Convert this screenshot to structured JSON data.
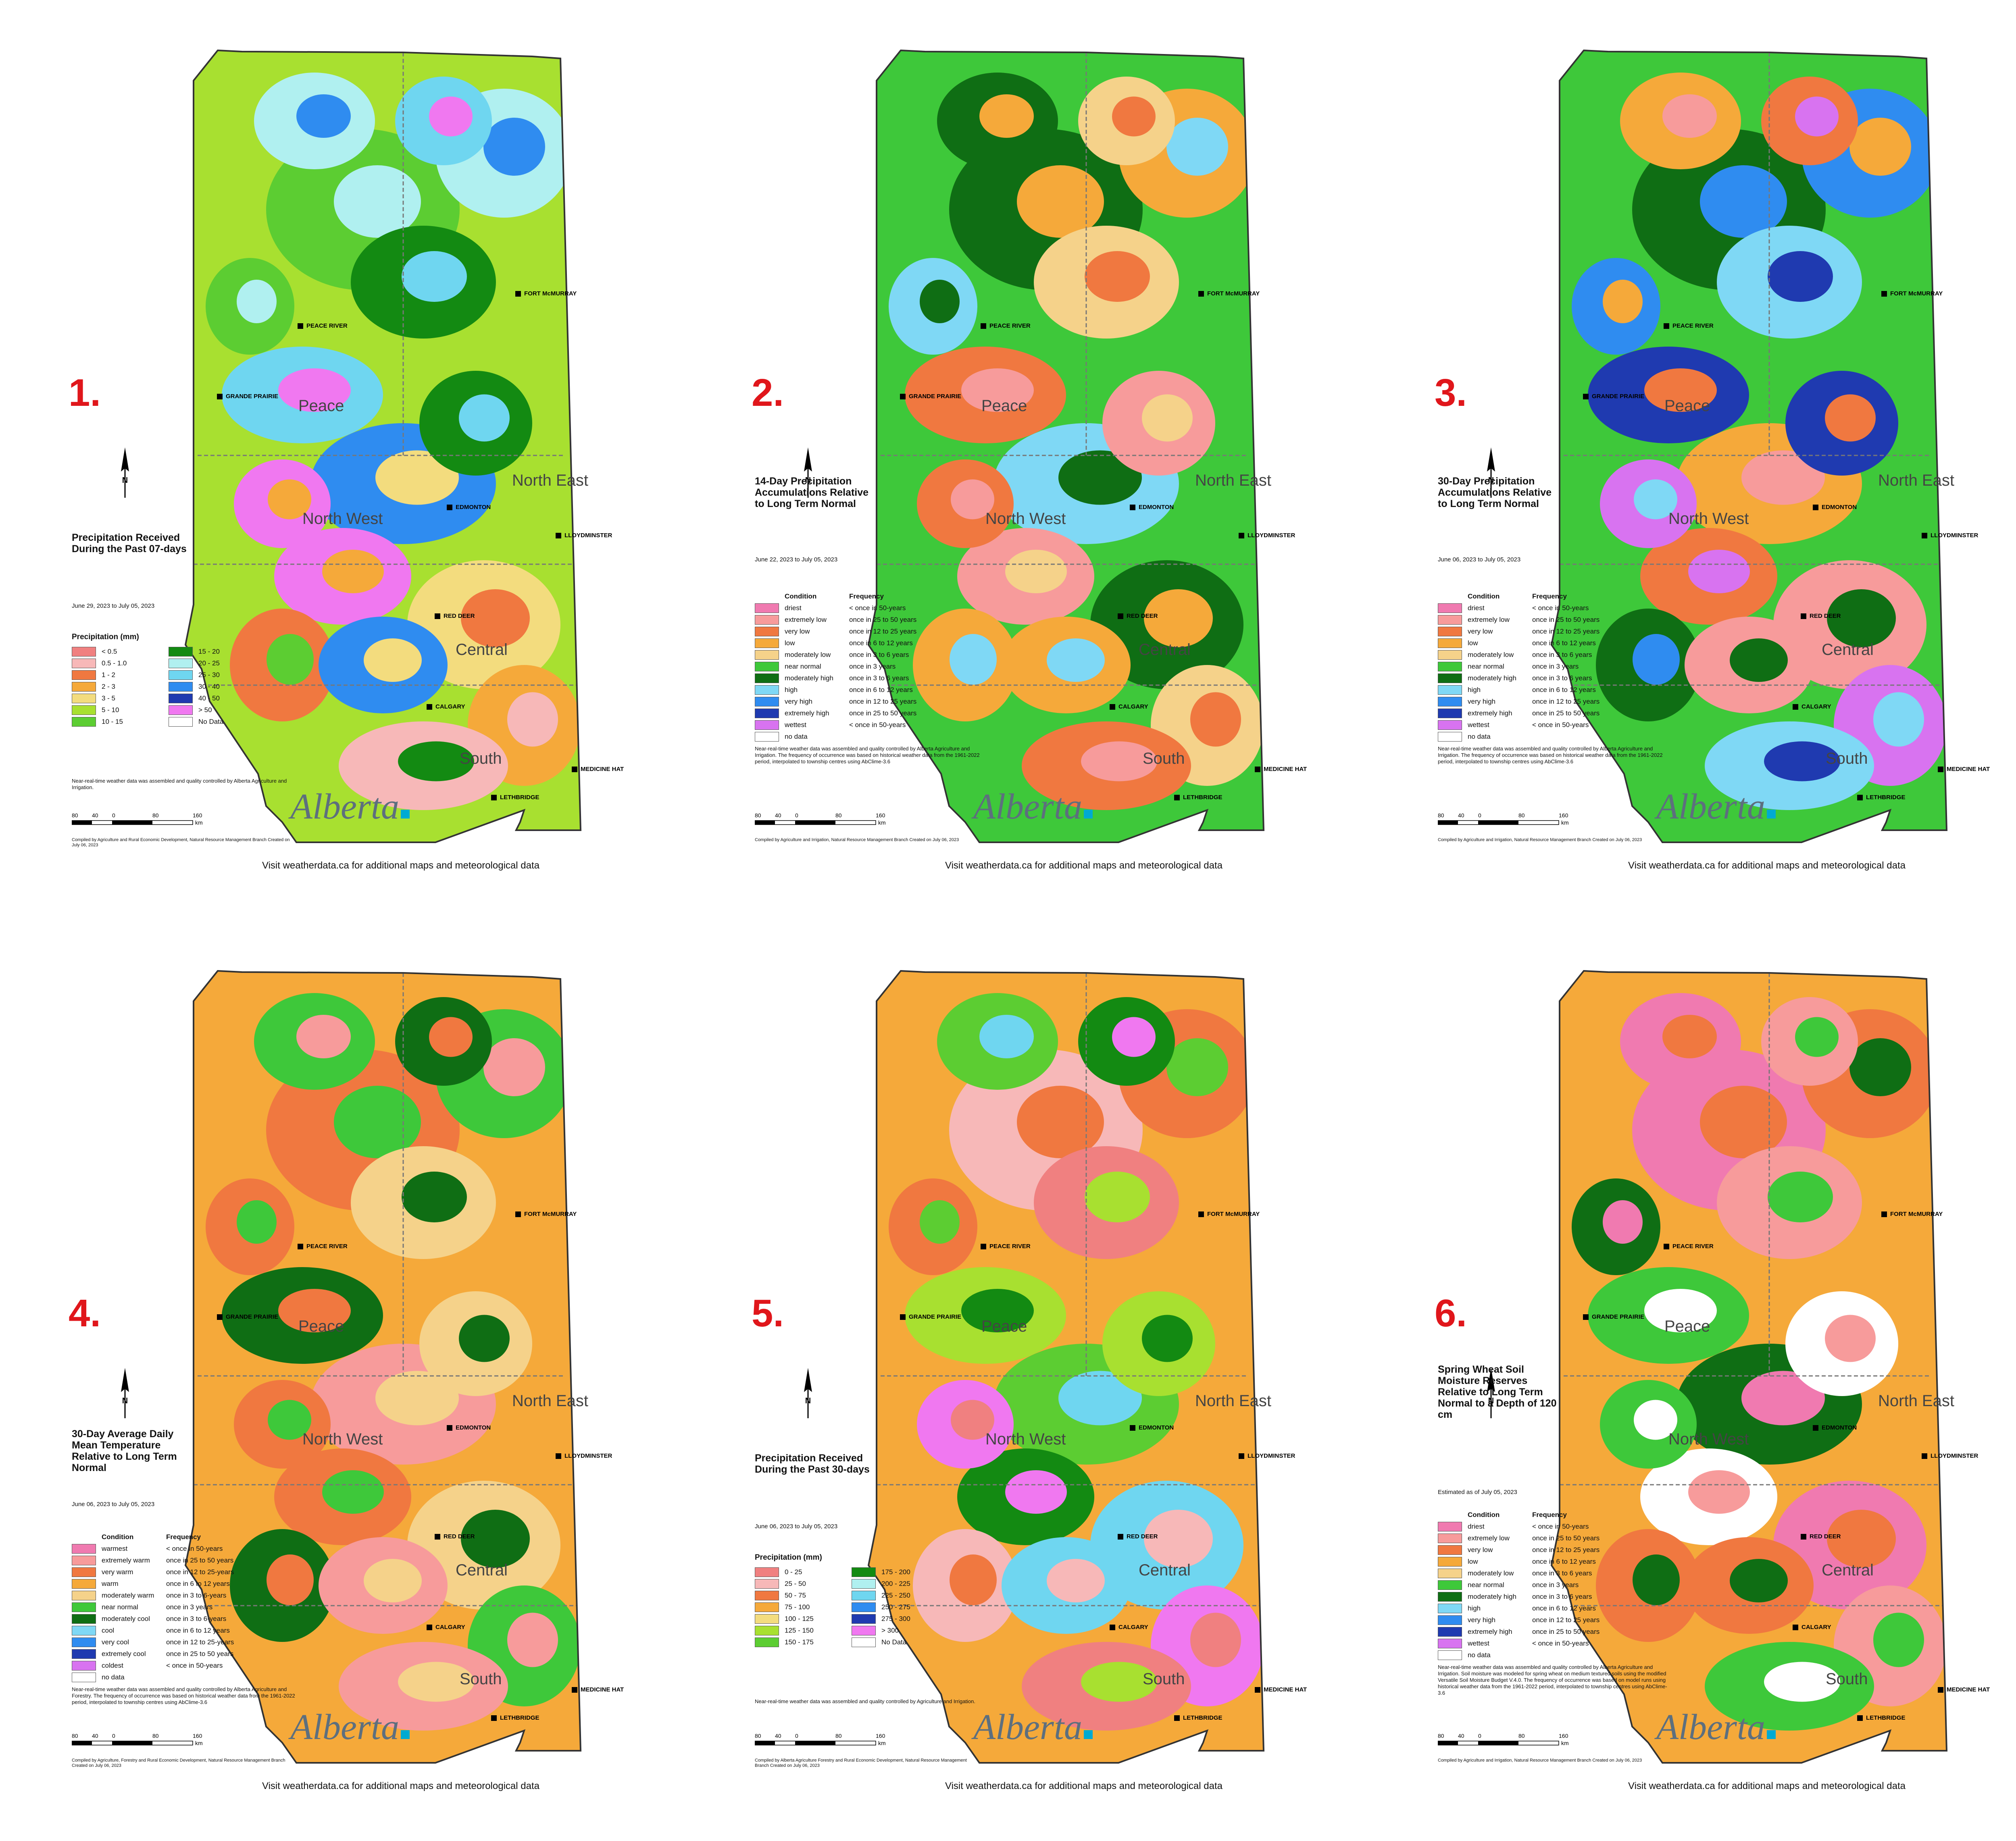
{
  "page": {
    "visit_text": "Visit weatherdata.ca for additional maps and meteorological data",
    "logo_text": "Alberta"
  },
  "common": {
    "regions": [
      "Peace",
      "North West",
      "North East",
      "Central",
      "South"
    ],
    "cities": [
      "FORT McMURRAY",
      "PEACE RIVER",
      "GRANDE PRAIRIE",
      "EDMONTON",
      "LLOYDMINSTER",
      "RED DEER",
      "CALGARY",
      "MEDICINE HAT",
      "LETHBRIDGE"
    ],
    "scale_labels": [
      "80",
      "40",
      "0",
      "80",
      "160"
    ],
    "scale_unit": "km"
  },
  "panels": [
    {
      "number": "1.",
      "title": "Precipitation Received During the Past 07-days",
      "dates": "June 29, 2023 to July 05, 2023",
      "legend_title": "Precipitation (mm)",
      "legend_left": [
        {
          "label": "< 0.5",
          "color": "#f08080"
        },
        {
          "label": "0.5 - 1.0",
          "color": "#f7b8b8"
        },
        {
          "label": "1 - 2",
          "color": "#f07840"
        },
        {
          "label": "2 - 3",
          "color": "#f5a93a"
        },
        {
          "label": "3 - 5",
          "color": "#f3dc7e"
        },
        {
          "label": "5 - 10",
          "color": "#a8e030"
        },
        {
          "label": "10 - 15",
          "color": "#5ccd32"
        }
      ],
      "legend_right": [
        {
          "label": "15 - 20",
          "color": "#138a12"
        },
        {
          "label": "20 - 25",
          "color": "#b0f0f0"
        },
        {
          "label": "25 - 30",
          "color": "#6fd6f0"
        },
        {
          "label": "30 - 40",
          "color": "#2f8cf0"
        },
        {
          "label": "40 - 50",
          "color": "#1f3ab0"
        },
        {
          "label": "> 50",
          "color": "#f078f0"
        },
        {
          "label": "No Data",
          "color": "#ffffff"
        }
      ],
      "note": "Near-real-time weather data was assembled and quality controlled by Alberta Agriculture and Irrigation.",
      "credit": "Compiled by Agriculture and Rural Economic Development, Natural Resource Management Branch Created on July 06, 2023"
    },
    {
      "number": "2.",
      "title": "14-Day Precipitation Accumulations Relative to Long Term Normal",
      "dates": "June 22, 2023 to July 05, 2023",
      "legend_head_condition": "Condition",
      "legend_head_frequency": "Frequency",
      "legend": [
        {
          "condition": "driest",
          "frequency": "< once in 50-years",
          "color": "#f07ab0"
        },
        {
          "condition": "extremely low",
          "frequency": "once in 25 to 50 years",
          "color": "#f79b9b"
        },
        {
          "condition": "very low",
          "frequency": "once in 12 to 25 years",
          "color": "#f07840"
        },
        {
          "condition": "low",
          "frequency": "once in 6 to 12 years",
          "color": "#f5a93a"
        },
        {
          "condition": "moderately low",
          "frequency": "once in 3 to 6 years",
          "color": "#f5d28a"
        },
        {
          "condition": "near normal",
          "frequency": "once in 3 years",
          "color": "#3ec83a"
        },
        {
          "condition": "moderately high",
          "frequency": "once in 3 to 6 years",
          "color": "#0f6e14"
        },
        {
          "condition": "high",
          "frequency": "once in 6 to 12 years",
          "color": "#7fd8f5"
        },
        {
          "condition": "very high",
          "frequency": "once in 12 to 25 years",
          "color": "#2f8cf0"
        },
        {
          "condition": "extremely high",
          "frequency": "once in 25 to 50 years",
          "color": "#1f3ab0"
        },
        {
          "condition": "wettest",
          "frequency": "< once in 50-years",
          "color": "#d873f0"
        },
        {
          "condition": "no data",
          "frequency": "",
          "color": "#ffffff"
        }
      ],
      "note": "Near-real-time weather data was assembled and quality controlled by Alberta Agriculture and Irrigation. The frequency of occurrence was based on historical weather data from the 1961-2022 period, interpolated to township centres using AbClime-3.6",
      "credit": "Compiled by Agriculture and Irrigation, Natural Resource Management Branch Created on July 06, 2023"
    },
    {
      "number": "3.",
      "title": "30-Day Precipitation Accumulations Relative to Long Term Normal",
      "dates": "June 06, 2023 to July 05, 2023",
      "legend_head_condition": "Condition",
      "legend_head_frequency": "Frequency",
      "legend": [
        {
          "condition": "driest",
          "frequency": "< once in 50-years",
          "color": "#f07ab0"
        },
        {
          "condition": "extremely low",
          "frequency": "once in 25 to 50 years",
          "color": "#f79b9b"
        },
        {
          "condition": "very low",
          "frequency": "once in 12 to 25 years",
          "color": "#f07840"
        },
        {
          "condition": "low",
          "frequency": "once in 6 to 12 years",
          "color": "#f5a93a"
        },
        {
          "condition": "moderately low",
          "frequency": "once in 3 to 6 years",
          "color": "#f5d28a"
        },
        {
          "condition": "near normal",
          "frequency": "once in 3 years",
          "color": "#3ec83a"
        },
        {
          "condition": "moderately high",
          "frequency": "once in 3 to 6 years",
          "color": "#0f6e14"
        },
        {
          "condition": "high",
          "frequency": "once in 6 to 12 years",
          "color": "#7fd8f5"
        },
        {
          "condition": "very high",
          "frequency": "once in 12 to 25 years",
          "color": "#2f8cf0"
        },
        {
          "condition": "extremely high",
          "frequency": "once in 25 to 50 years",
          "color": "#1f3ab0"
        },
        {
          "condition": "wettest",
          "frequency": "< once in 50-years",
          "color": "#d873f0"
        },
        {
          "condition": "no data",
          "frequency": "",
          "color": "#ffffff"
        }
      ],
      "note": "Near-real-time weather data was assembled and quality controlled by Alberta Agriculture and Irrigation. The frequency of occurrence was based on historical weather data from the 1961-2022 period, interpolated to township centres using AbClime-3.6",
      "credit": "Compiled by Agriculture and Irrigation, Natural Resource Management Branch Created on July 06, 2023"
    },
    {
      "number": "4.",
      "title": "30-Day Average Daily Mean Temperature Relative to Long Term Normal",
      "dates": "June 06, 2023 to July 05, 2023",
      "legend_head_condition": "Condition",
      "legend_head_frequency": "Frequency",
      "legend": [
        {
          "condition": "warmest",
          "frequency": "< once in 50-years",
          "color": "#f07ab0"
        },
        {
          "condition": "extremely warm",
          "frequency": "once in 25 to 50 years",
          "color": "#f79b9b"
        },
        {
          "condition": "very warm",
          "frequency": "once in 12 to 25-years",
          "color": "#f07840"
        },
        {
          "condition": "warm",
          "frequency": "once in 6 to 12 years",
          "color": "#f5a93a"
        },
        {
          "condition": "moderately warm",
          "frequency": "once in 3 to 6-years",
          "color": "#f5d28a"
        },
        {
          "condition": "near normal",
          "frequency": "once in 3 years",
          "color": "#3ec83a"
        },
        {
          "condition": "moderately cool",
          "frequency": "once in 3 to 6-years",
          "color": "#0f6e14"
        },
        {
          "condition": "cool",
          "frequency": "once in 6 to 12 years",
          "color": "#7fd8f5"
        },
        {
          "condition": "very cool",
          "frequency": "once in 12 to 25-years",
          "color": "#2f8cf0"
        },
        {
          "condition": "extremely cool",
          "frequency": "once in 25 to 50 years",
          "color": "#1f3ab0"
        },
        {
          "condition": "coldest",
          "frequency": "< once in 50-years",
          "color": "#d873f0"
        },
        {
          "condition": "no data",
          "frequency": "",
          "color": "#ffffff"
        }
      ],
      "note": "Near-real-time weather data was assembled and quality controlled by Alberta Agriculture and Forestry. The frequency of occurrence was based on historical weather data from the 1961-2022 period, interpolated to township centres using AbClime-3.6",
      "credit": "Compiled by Agriculture, Forestry and Rural Economic Development, Natural Resource Management Branch Created on July 06, 2023"
    },
    {
      "number": "5.",
      "title": "Precipitation Received During the Past 30-days",
      "dates": "June 06, 2023 to July 05, 2023",
      "legend_title": "Precipitation (mm)",
      "legend_left": [
        {
          "label": "0 - 25",
          "color": "#f08080"
        },
        {
          "label": "25 - 50",
          "color": "#f7b8b8"
        },
        {
          "label": "50 - 75",
          "color": "#f07840"
        },
        {
          "label": "75 - 100",
          "color": "#f5a93a"
        },
        {
          "label": "100 - 125",
          "color": "#f3dc7e"
        },
        {
          "label": "125 - 150",
          "color": "#a8e030"
        },
        {
          "label": "150 - 175",
          "color": "#5ccd32"
        }
      ],
      "legend_right": [
        {
          "label": "175 - 200",
          "color": "#138a12"
        },
        {
          "label": "200 - 225",
          "color": "#b0f0f0"
        },
        {
          "label": "225 - 250",
          "color": "#6fd6f0"
        },
        {
          "label": "250 - 275",
          "color": "#2f8cf0"
        },
        {
          "label": "275 - 300",
          "color": "#1f3ab0"
        },
        {
          "label": "> 300",
          "color": "#f078f0"
        },
        {
          "label": "No Data",
          "color": "#ffffff"
        }
      ],
      "note": "Near-real-time weather data was assembled and quality controlled by Agriculture and Irrigation.",
      "credit": "Compiled by Alberta Agriculture Forestry and Rural Economic Development, Natural Resource Management Branch Created on July 06, 2023"
    },
    {
      "number": "6.",
      "title": "Spring Wheat Soil Moisture Reserves Relative to Long Term Normal to a Depth of 120 cm",
      "dates": "Estimated as of July 05, 2023",
      "legend_head_condition": "Condition",
      "legend_head_frequency": "Frequency",
      "legend": [
        {
          "condition": "driest",
          "frequency": "< once in 50-years",
          "color": "#f07ab0"
        },
        {
          "condition": "extremely low",
          "frequency": "once in 25 to 50 years",
          "color": "#f79b9b"
        },
        {
          "condition": "very low",
          "frequency": "once in 12 to 25 years",
          "color": "#f07840"
        },
        {
          "condition": "low",
          "frequency": "once in 6 to 12 years",
          "color": "#f5a93a"
        },
        {
          "condition": "moderately low",
          "frequency": "once in 3 to 6 years",
          "color": "#f5d28a"
        },
        {
          "condition": "near normal",
          "frequency": "once in 3 years",
          "color": "#3ec83a"
        },
        {
          "condition": "moderately high",
          "frequency": "once in 3 to 6 years",
          "color": "#0f6e14"
        },
        {
          "condition": "high",
          "frequency": "once in 6 to 12 years",
          "color": "#7fd8f5"
        },
        {
          "condition": "very high",
          "frequency": "once in 12 to 25 years",
          "color": "#2f8cf0"
        },
        {
          "condition": "extremely high",
          "frequency": "once in 25 to 50 years",
          "color": "#1f3ab0"
        },
        {
          "condition": "wettest",
          "frequency": "< once in 50-years",
          "color": "#d873f0"
        },
        {
          "condition": "no data",
          "frequency": "",
          "color": "#ffffff"
        }
      ],
      "note": "Near-real-time weather data was assembled and quality controlled by Alberta Agriculture and Irrigation. Soil moisture was modeled for spring wheat on medium textured soils using the modified Versatile Soil Moisture Budget V.4.0. The frequency of occurrence was based on model runs using historical weather data from the 1961-2022 period, interpolated to township centres using AbClime-3.6",
      "credit": "Compiled by Agriculture and Irrigation, Natural Resource Management Branch Created on July 06, 2023"
    }
  ],
  "map_fills": {
    "p1": {
      "base": "#a8e030",
      "bands": [
        "#5ccd32",
        "#138a12",
        "#b0f0f0",
        "#6fd6f0",
        "#2f8cf0",
        "#f078f0",
        "#f3dc7e",
        "#f5a93a",
        "#f07840",
        "#f7b8b8"
      ]
    },
    "p2": {
      "base": "#3ec83a",
      "bands": [
        "#0f6e14",
        "#f5d28a",
        "#f5a93a",
        "#f07840",
        "#7fd8f5",
        "#f79b9b"
      ]
    },
    "p3": {
      "base": "#3ec83a",
      "bands": [
        "#0f6e14",
        "#7fd8f5",
        "#2f8cf0",
        "#1f3ab0",
        "#f5a93a",
        "#f07840",
        "#f79b9b",
        "#d873f0"
      ]
    },
    "p4": {
      "base": "#f5a93a",
      "bands": [
        "#f07840",
        "#f5d28a",
        "#3ec83a",
        "#0f6e14",
        "#f79b9b"
      ]
    },
    "p5": {
      "base": "#f5a93a",
      "bands": [
        "#f7b8b8",
        "#f08080",
        "#f07840",
        "#a8e030",
        "#5ccd32",
        "#138a12",
        "#6fd6f0",
        "#f078f0"
      ]
    },
    "p6": {
      "base": "#f5a93a",
      "bands": [
        "#f07ab0",
        "#f79b9b",
        "#f07840",
        "#3ec83a",
        "#0f6e14",
        "#ffffff"
      ]
    }
  }
}
